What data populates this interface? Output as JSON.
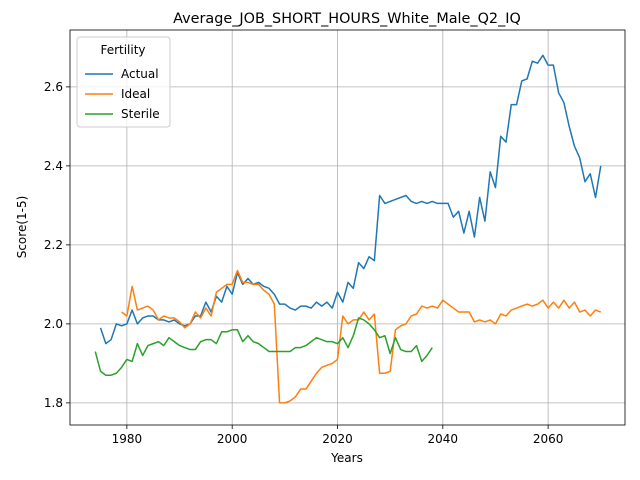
{
  "chart_data": {
    "type": "line",
    "title": "Average_JOB_SHORT_HOURS_White_Male_Q2_IQ",
    "xlabel": "Years",
    "ylabel": "Score(1-5)",
    "legend_title": "Fertility",
    "legend": "upper left",
    "grid": true,
    "xlim": [
      1969.2,
      2074.6
    ],
    "ylim": [
      1.744,
      2.744
    ],
    "xticks": [
      1980,
      2000,
      2020,
      2040,
      2060
    ],
    "yticks": [
      1.8,
      {
        "value": 2,
        "label": "2.0"
      },
      2.2,
      2.4,
      2.6
    ],
    "x": [
      1974,
      1975,
      1976,
      1977,
      1978,
      1979,
      1980,
      1981,
      1982,
      1983,
      1984,
      1985,
      1986,
      1987,
      1988,
      1989,
      1990,
      1991,
      1992,
      1993,
      1994,
      1995,
      1996,
      1997,
      1998,
      1999,
      2000,
      2001,
      2002,
      2003,
      2004,
      2005,
      2006,
      2007,
      2008,
      2009,
      2010,
      2011,
      2012,
      2013,
      2014,
      2015,
      2016,
      2017,
      2018,
      2019,
      2020,
      2021,
      2022,
      2023,
      2024,
      2025,
      2026,
      2027,
      2028,
      2029,
      2030,
      2031,
      2032,
      2033,
      2034,
      2035,
      2036,
      2037,
      2038,
      2039,
      2040,
      2041,
      2042,
      2043,
      2044,
      2045,
      2046,
      2047,
      2048,
      2049,
      2050,
      2051,
      2052,
      2053,
      2054,
      2055,
      2056,
      2057,
      2058,
      2059,
      2060,
      2061,
      2062,
      2063,
      2064,
      2065,
      2066,
      2067,
      2068,
      2069,
      2070
    ],
    "series": [
      {
        "name": "Actual",
        "color": "#1f77b4",
        "values": [
          null,
          1.99,
          1.95,
          1.96,
          2.0,
          1.995,
          2.0,
          2.035,
          2.0,
          2.015,
          2.02,
          2.02,
          2.01,
          2.01,
          2.005,
          2.01,
          2.0,
          1.995,
          2.0,
          2.02,
          2.02,
          2.055,
          2.03,
          2.07,
          2.055,
          2.095,
          2.075,
          2.13,
          2.1,
          2.115,
          2.1,
          2.105,
          2.095,
          2.09,
          2.075,
          2.05,
          2.05,
          2.04,
          2.035,
          2.045,
          2.045,
          2.04,
          2.055,
          2.045,
          2.055,
          2.04,
          2.08,
          2.055,
          2.105,
          2.09,
          2.155,
          2.14,
          2.17,
          2.16,
          2.325,
          2.305,
          2.31,
          2.315,
          2.32,
          2.325,
          2.31,
          2.305,
          2.31,
          2.305,
          2.31,
          2.305,
          2.305,
          2.305,
          2.27,
          2.285,
          2.23,
          2.285,
          2.22,
          2.32,
          2.26,
          2.385,
          2.345,
          2.475,
          2.46,
          2.555,
          2.555,
          2.615,
          2.62,
          2.665,
          2.66,
          2.68,
          2.655,
          2.655,
          2.585,
          2.56,
          2.5,
          2.45,
          2.42,
          2.36,
          2.38,
          2.32,
          2.4
        ]
      },
      {
        "name": "Ideal",
        "color": "#ff7f0e",
        "values": [
          null,
          null,
          null,
          null,
          null,
          2.03,
          2.02,
          2.095,
          2.035,
          2.04,
          2.045,
          2.035,
          2.01,
          2.02,
          2.015,
          2.015,
          2.005,
          1.99,
          2.0,
          2.03,
          2.015,
          2.04,
          2.02,
          2.08,
          2.09,
          2.1,
          2.1,
          2.135,
          2.105,
          2.105,
          2.1,
          2.1,
          2.085,
          2.075,
          2.05,
          1.8,
          1.8,
          1.805,
          1.815,
          1.835,
          1.835,
          1.855,
          1.875,
          1.89,
          1.895,
          1.9,
          1.91,
          2.02,
          2.0,
          2.01,
          2.01,
          2.03,
          2.01,
          2.025,
          1.875,
          1.875,
          1.88,
          1.985,
          1.995,
          2.0,
          2.02,
          2.025,
          2.045,
          2.04,
          2.045,
          2.04,
          2.06,
          2.05,
          2.04,
          2.03,
          2.03,
          2.03,
          2.005,
          2.01,
          2.005,
          2.01,
          2.0,
          2.025,
          2.02,
          2.035,
          2.04,
          2.045,
          2.05,
          2.045,
          2.05,
          2.06,
          2.04,
          2.055,
          2.04,
          2.06,
          2.04,
          2.055,
          2.03,
          2.035,
          2.02,
          2.035,
          2.03
        ]
      },
      {
        "name": "Sterile",
        "color": "#2ca02c",
        "values": [
          1.93,
          1.88,
          1.87,
          1.87,
          1.875,
          1.89,
          1.91,
          1.905,
          1.95,
          1.92,
          1.945,
          1.95,
          1.955,
          1.945,
          1.965,
          1.955,
          1.945,
          1.94,
          1.935,
          1.935,
          1.955,
          1.96,
          1.96,
          1.95,
          1.98,
          1.98,
          1.985,
          1.985,
          1.955,
          1.97,
          1.955,
          1.95,
          1.94,
          1.93,
          1.93,
          1.93,
          1.93,
          1.93,
          1.94,
          1.94,
          1.945,
          1.955,
          1.965,
          1.96,
          1.955,
          1.955,
          1.95,
          1.965,
          1.94,
          1.97,
          2.015,
          2.01,
          2.0,
          1.985,
          1.965,
          1.97,
          1.925,
          1.965,
          1.935,
          1.93,
          1.93,
          1.945,
          1.905,
          1.92,
          1.94,
          null,
          null,
          null,
          null,
          null,
          null,
          null,
          null,
          null,
          null,
          null,
          null,
          null,
          null,
          null,
          null,
          null,
          null,
          null,
          null,
          null,
          null,
          null,
          null,
          null,
          null,
          null,
          null,
          null,
          null,
          null,
          null
        ]
      }
    ]
  }
}
